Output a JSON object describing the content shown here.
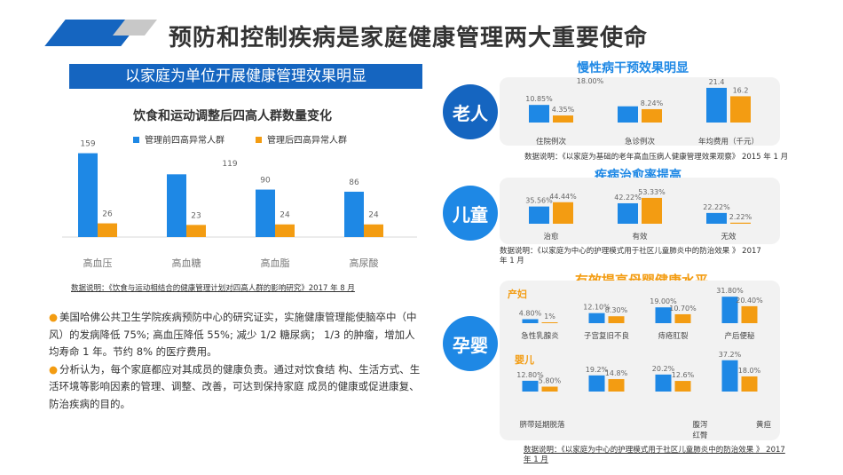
{
  "title": "预防和控制疾病是家庭健康管理两大重要使命",
  "left": {
    "banner": "以家庭为单位开展健康管理效果明显",
    "chart_title": "饮食和运动调整后四高人群数量变化",
    "legend": [
      "管理前四高异常人群",
      "管理后四高异常人群"
    ],
    "note": "数据说明：《饮食与运动相结合的健康管理计划对四高人群的影响研究》2017 年 8 月",
    "paragraph1": "美国哈佛公共卫生学院疾病预防中心的研究证实，实施健康管理能使脑卒中（中风）的发病降低 75%; 高血压降低 55%; 减少 1/2 糖尿病； 1/3 的肿瘤，增加人均寿命 1 年。节约 8% 的医疗费用。",
    "paragraph2": "分析认为，每个家庭都应对其成员的健康负责。通过对饮食结 构、生活方式、生活环境等影响因素的管理、调整、改善，可达到保持家庭 成员的健康或促进康复、防治疾病的目的。"
  },
  "chart_data": [
    {
      "type": "bar",
      "title": "饮食和运动调整后四高人群数量变化",
      "categories": [
        "高血压",
        "高血糖",
        "高血脂",
        "高尿酸"
      ],
      "series": [
        {
          "name": "管理前四高异常人群",
          "values": [
            159,
            119,
            90,
            86
          ],
          "color": "#1e88e5"
        },
        {
          "name": "管理后四高异常人群",
          "values": [
            26,
            23,
            24,
            24
          ],
          "color": "#f39c12"
        }
      ],
      "ylim": [
        0,
        165
      ],
      "legend_position": "top"
    },
    {
      "type": "bar",
      "title": "慢性病干预效果明显",
      "categories": [
        "住院例次",
        "急诊例次",
        "年均费用（千元）"
      ],
      "series": [
        {
          "values": [
            10.85,
            10.0,
            21.4
          ],
          "labels": [
            "10.85%",
            "",
            "21.4"
          ],
          "color": "#1e88e5"
        },
        {
          "values": [
            4.35,
            8.24,
            16.2
          ],
          "labels": [
            "4.35%",
            "8.24%",
            "16.2"
          ],
          "color": "#f39c12"
        }
      ],
      "extra_labels": [
        "18.00%"
      ]
    },
    {
      "type": "bar",
      "title": "疾病治愈率提高",
      "categories": [
        "治愈",
        "有效",
        "无效"
      ],
      "series": [
        {
          "values": [
            35.56,
            42.22,
            22.22
          ],
          "labels": [
            "35.56%",
            "42.22%",
            "22.22%"
          ],
          "color": "#1e88e5"
        },
        {
          "values": [
            44.44,
            53.33,
            2.22
          ],
          "labels": [
            "44.44%",
            "53.33%",
            "2.22%"
          ],
          "color": "#f39c12"
        }
      ]
    },
    {
      "type": "bar",
      "title": "有效提高母婴健康水平 - 产妇",
      "categories": [
        "急性乳腺炎",
        "子宫复旧不良",
        "痔疮肛裂",
        "产后便秘"
      ],
      "series": [
        {
          "values": [
            4.8,
            12.1,
            19.0,
            31.8
          ],
          "labels": [
            "4.80%",
            "12.10%",
            "19.00%",
            "31.80%"
          ],
          "color": "#1e88e5"
        },
        {
          "values": [
            1,
            8.3,
            10.7,
            20.4
          ],
          "labels": [
            "1%",
            "8.30%",
            "10.70%",
            "20.40%"
          ],
          "color": "#f39c12"
        }
      ]
    },
    {
      "type": "bar",
      "title": "有效提高母婴健康水平 - 婴儿",
      "categories": [
        "脐带延期脱落",
        "",
        "腹泻红臀",
        "黄疸"
      ],
      "series": [
        {
          "values": [
            12.8,
            19.2,
            20.2,
            37.2
          ],
          "labels": [
            "12.80%",
            "19.2%",
            "20.2%",
            "37.2%"
          ],
          "color": "#1e88e5"
        },
        {
          "values": [
            5.8,
            14.8,
            12.6,
            18.0
          ],
          "labels": [
            "5.80%",
            "14.8%",
            "12.6%",
            "18.0%"
          ],
          "color": "#f39c12"
        }
      ]
    }
  ],
  "right": {
    "elderly": {
      "badge": "老人",
      "title": "慢性病干预效果明显",
      "note": "数据说明：《以家庭为基础的老年高血压病人健康管理效果观察》 2015 年 1 月"
    },
    "children": {
      "badge": "儿童",
      "title": "疾病治愈率提高",
      "note": "数据说明：《以家庭为中心的护理模式用于社区儿童肺炎中的防治效果 》 2017 年 1 月"
    },
    "maternal": {
      "badge": "孕婴",
      "title": "有效提高母婴健康水平",
      "sub_mother": "产妇",
      "sub_infant": "婴儿",
      "note": "数据说明：《以家庭为中心的护理模式用于社区儿童肺炎中的防治效果 》 2017 年 1 月"
    }
  },
  "colors": {
    "blue": "#1e88e5",
    "orange": "#f39c12",
    "dark_blue": "#1565c0",
    "grey_panel": "#f2f2f2"
  }
}
